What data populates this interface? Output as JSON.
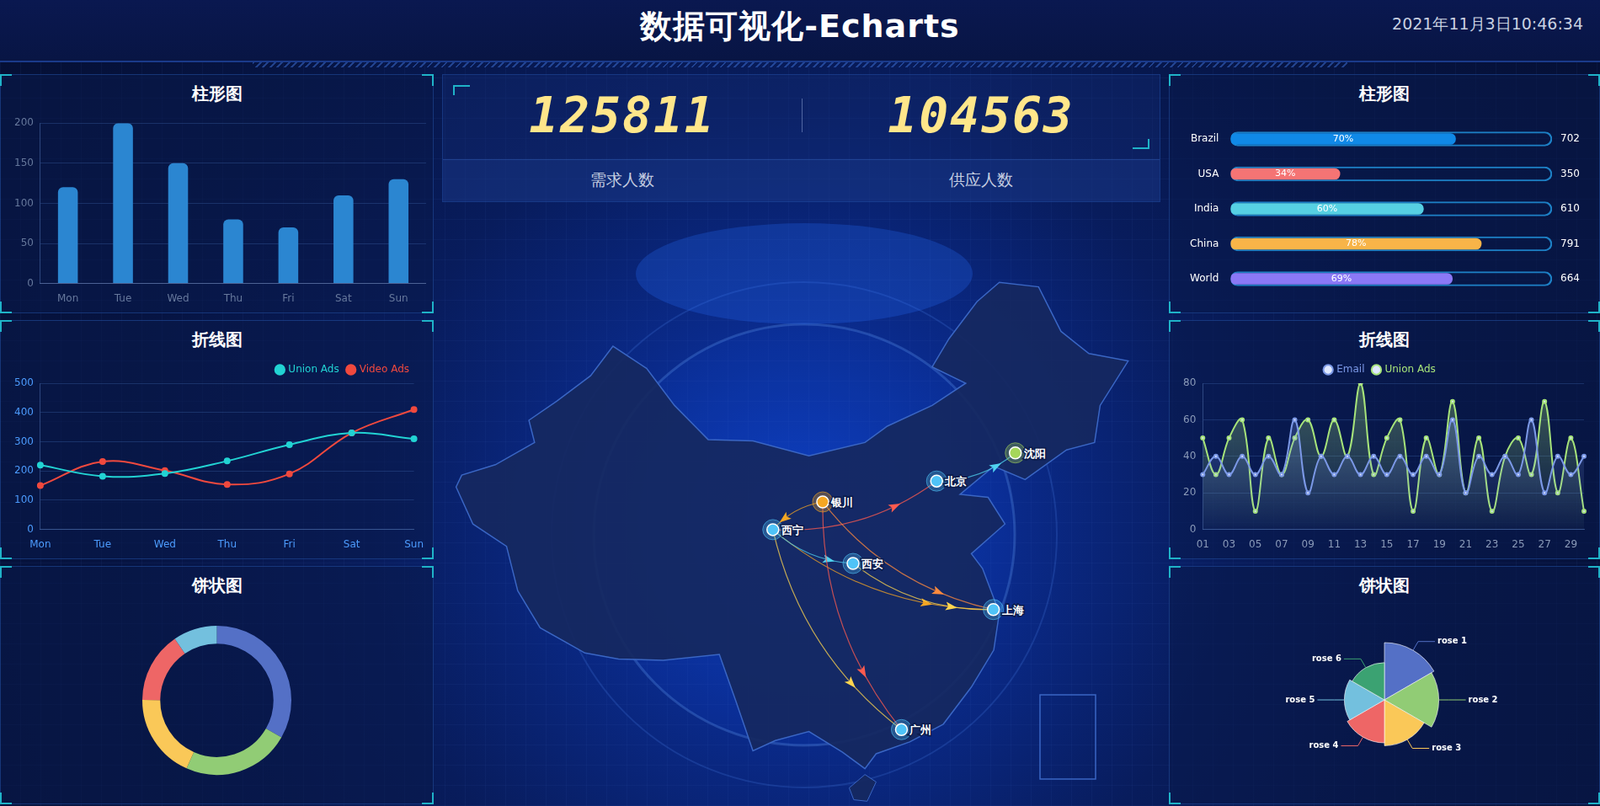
{
  "header": {
    "title": "数据可视化-Echarts",
    "datetime": "2021年11月3日10:46:34"
  },
  "stats": [
    {
      "value": 125811,
      "label": "需求人数"
    },
    {
      "value": 104563,
      "label": "供应人数"
    }
  ],
  "chart_data": [
    {
      "type": "bar",
      "title": "柱形图",
      "categories": [
        "Mon",
        "Tue",
        "Wed",
        "Thu",
        "Fri",
        "Sat",
        "Sun"
      ],
      "values": [
        120,
        200,
        150,
        80,
        70,
        110,
        130
      ],
      "color": "#2b86d1",
      "ylim": [
        0,
        200
      ],
      "yticks": [
        0,
        50,
        100,
        150,
        200
      ],
      "grid": true
    },
    {
      "type": "line",
      "title": "折线图",
      "categories": [
        "Mon",
        "Tue",
        "Wed",
        "Thu",
        "Fri",
        "Sat",
        "Sun"
      ],
      "series": [
        {
          "name": "Union Ads",
          "color": "#22d3d3",
          "values": [
            220,
            182,
            191,
            234,
            290,
            330,
            310
          ]
        },
        {
          "name": "Video Ads",
          "color": "#f0493e",
          "values": [
            150,
            232,
            201,
            154,
            190,
            330,
            410
          ]
        }
      ],
      "ylim": [
        0,
        500
      ],
      "yticks": [
        0,
        100,
        200,
        300,
        400,
        500
      ],
      "grid": true,
      "legend": "top-right",
      "marker": "circle"
    },
    {
      "type": "doughnut",
      "title": "饼状图",
      "values": [
        1048,
        735,
        580,
        484,
        300
      ],
      "colors": [
        "#5470c6",
        "#91cc75",
        "#fac858",
        "#ee6666",
        "#73c0de"
      ]
    },
    {
      "type": "bar",
      "orientation": "horizontal",
      "title": "柱形图",
      "categories": [
        "Brazil",
        "USA",
        "India",
        "China",
        "World"
      ],
      "values": [
        70,
        34,
        60,
        78,
        69
      ],
      "value_labels": [
        "70%",
        "34%",
        "60%",
        "78%",
        "69%"
      ],
      "data_labels": true,
      "totals": [
        702,
        350,
        610,
        791,
        664
      ],
      "colors": [
        "#1089e7",
        "#f57474",
        "#56d0e3",
        "#f8b448",
        "#8b78f6"
      ],
      "xlim": [
        0,
        100
      ],
      "tick_labels": "y",
      "grid": false
    },
    {
      "type": "line",
      "title": "折线图",
      "categories": [
        "01",
        null,
        "03",
        null,
        "05",
        null,
        "07",
        null,
        "09",
        null,
        "11",
        null,
        "13",
        null,
        "15",
        null,
        "17",
        null,
        "19",
        null,
        "21",
        null,
        "23",
        null,
        "25",
        null,
        "27",
        null,
        "29",
        null
      ],
      "series": [
        {
          "name": "Email",
          "color": "#7b98e6",
          "values": [
            30,
            40,
            30,
            40,
            30,
            40,
            30,
            60,
            20,
            40,
            30,
            40,
            30,
            40,
            30,
            40,
            30,
            40,
            30,
            60,
            20,
            40,
            30,
            40,
            30,
            60,
            20,
            40,
            30,
            40
          ]
        },
        {
          "name": "Union Ads",
          "color": "#a6e37a",
          "values": [
            50,
            30,
            50,
            60,
            10,
            50,
            30,
            50,
            60,
            40,
            60,
            40,
            80,
            30,
            50,
            60,
            10,
            50,
            30,
            70,
            20,
            50,
            10,
            40,
            50,
            30,
            70,
            20,
            50,
            10
          ]
        }
      ],
      "ylim": [
        0,
        80
      ],
      "yticks": [
        0,
        20,
        40,
        60,
        80
      ],
      "grid": true,
      "legend": "top",
      "marker": "circle"
    },
    {
      "type": "polarArea",
      "title": "饼状图",
      "categories": [
        "rose 1",
        "rose 2",
        "rose 3",
        "rose 4",
        "rose 5",
        "rose 6"
      ],
      "values": [
        40,
        38,
        32,
        30,
        28,
        26
      ],
      "colors": [
        "#5470c6",
        "#91cc75",
        "#fac858",
        "#ee6666",
        "#73c0de",
        "#3ba272"
      ]
    }
  ],
  "map": {
    "cities": [
      {
        "name": "西宁",
        "lon": 101.78,
        "lat": 36.62,
        "color": "#4fc3f7"
      },
      {
        "name": "银川",
        "lon": 106.23,
        "lat": 38.49,
        "color": "#f5a623"
      },
      {
        "name": "北京",
        "lon": 116.4,
        "lat": 39.9,
        "color": "#4fc3f7"
      },
      {
        "name": "沈阳",
        "lon": 123.43,
        "lat": 41.8,
        "color": "#a5d65a"
      },
      {
        "name": "西安",
        "lon": 108.94,
        "lat": 34.34,
        "color": "#4fc3f7"
      },
      {
        "name": "上海",
        "lon": 121.47,
        "lat": 31.23,
        "color": "#4fc3f7"
      },
      {
        "name": "广州",
        "lon": 113.26,
        "lat": 23.13,
        "color": "#4fc3f7"
      }
    ],
    "routes": [
      [
        "西宁",
        "北京"
      ],
      [
        "西宁",
        "上海"
      ],
      [
        "西宁",
        "广州"
      ],
      [
        "西宁",
        "西安"
      ],
      [
        "银川",
        "上海"
      ],
      [
        "银川",
        "广州"
      ],
      [
        "银川",
        "西宁"
      ],
      [
        "西安",
        "上海"
      ],
      [
        "北京",
        "沈阳"
      ]
    ]
  }
}
